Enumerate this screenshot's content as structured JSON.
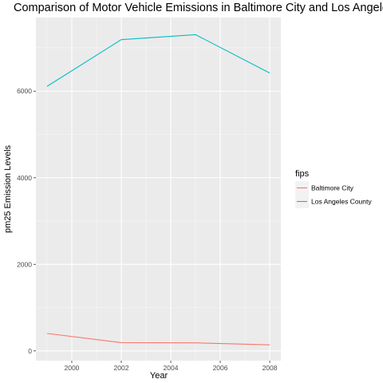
{
  "chart_data": {
    "type": "line",
    "title": "Comparison of Motor Vehicle Emissions in Baltimore City and Los Angeles County",
    "xlabel": "Year",
    "ylabel": "pm25 Emission Levels",
    "x": [
      1999,
      2002,
      2005,
      2008
    ],
    "xticks": [
      2000,
      2002,
      2004,
      2006,
      2008
    ],
    "yticks": [
      0,
      2000,
      4000,
      6000
    ],
    "xlim": [
      1998.55,
      2008.45
    ],
    "ylim": [
      -225,
      7700
    ],
    "grid": true,
    "legend": {
      "title": "fips",
      "placement": "right"
    },
    "series": [
      {
        "name": "Baltimore City",
        "color": "#F8766D",
        "values": [
          404,
          190,
          186,
          140
        ]
      },
      {
        "name": "Los Angeles County",
        "color": "#00BFC4",
        "values": [
          6110,
          7190,
          7305,
          6420
        ]
      }
    ]
  }
}
